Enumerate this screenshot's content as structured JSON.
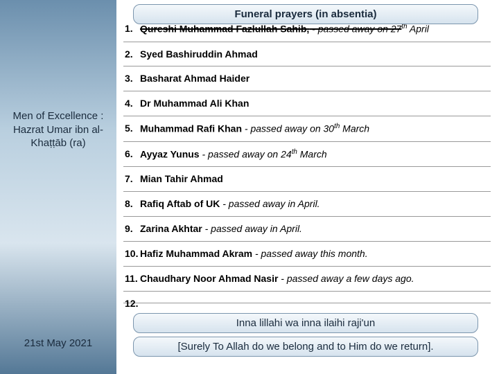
{
  "left": {
    "title": "Men of Excellence : Hazrat Umar ibn al-Khaṭṭāb (ra)",
    "date": "21st May 2021"
  },
  "banners": {
    "top": "Funeral prayers (in absentia)",
    "mid": "Inna lillahi wa inna ilaihi raji'un",
    "bot": "[Surely To Allah do we belong and to Him do we return]."
  },
  "items": [
    {
      "head": "Qureshi Muhammad Fazlullah Sahib,",
      "tail": " - passed away on 27",
      "sup": "th",
      "tail2": " April",
      "strike": true
    },
    {
      "head": "Syed Bashiruddin Ahmad",
      "tail": ""
    },
    {
      "head": " Basharat Ahmad Haider",
      "tail": ""
    },
    {
      "head": "Dr Muhammad Ali Khan",
      "tail": ""
    },
    {
      "head": "Muhammad Rafi Khan",
      "tail": " - passed away on 30",
      "sup": "th",
      "tail2": " March"
    },
    {
      "head": "Ayyaz Yunus",
      "tail": " - passed away on 24",
      "sup": "th",
      "tail2": " March"
    },
    {
      "head": "Mian Tahir Ahmad",
      "tail": ""
    },
    {
      "head": "Rafiq Aftab of UK",
      "tail": " - passed away in April."
    },
    {
      "head": "Zarina Akhtar",
      "tail": " - passed away in April."
    },
    {
      "head": "Hafiz Muhammad Akram",
      "tail": " - passed away this month."
    },
    {
      "head": "Chaudhary Noor Ahmad Nasir",
      "tail": " - passed away a few days ago."
    },
    {
      "head": "",
      "tail": " "
    }
  ]
}
